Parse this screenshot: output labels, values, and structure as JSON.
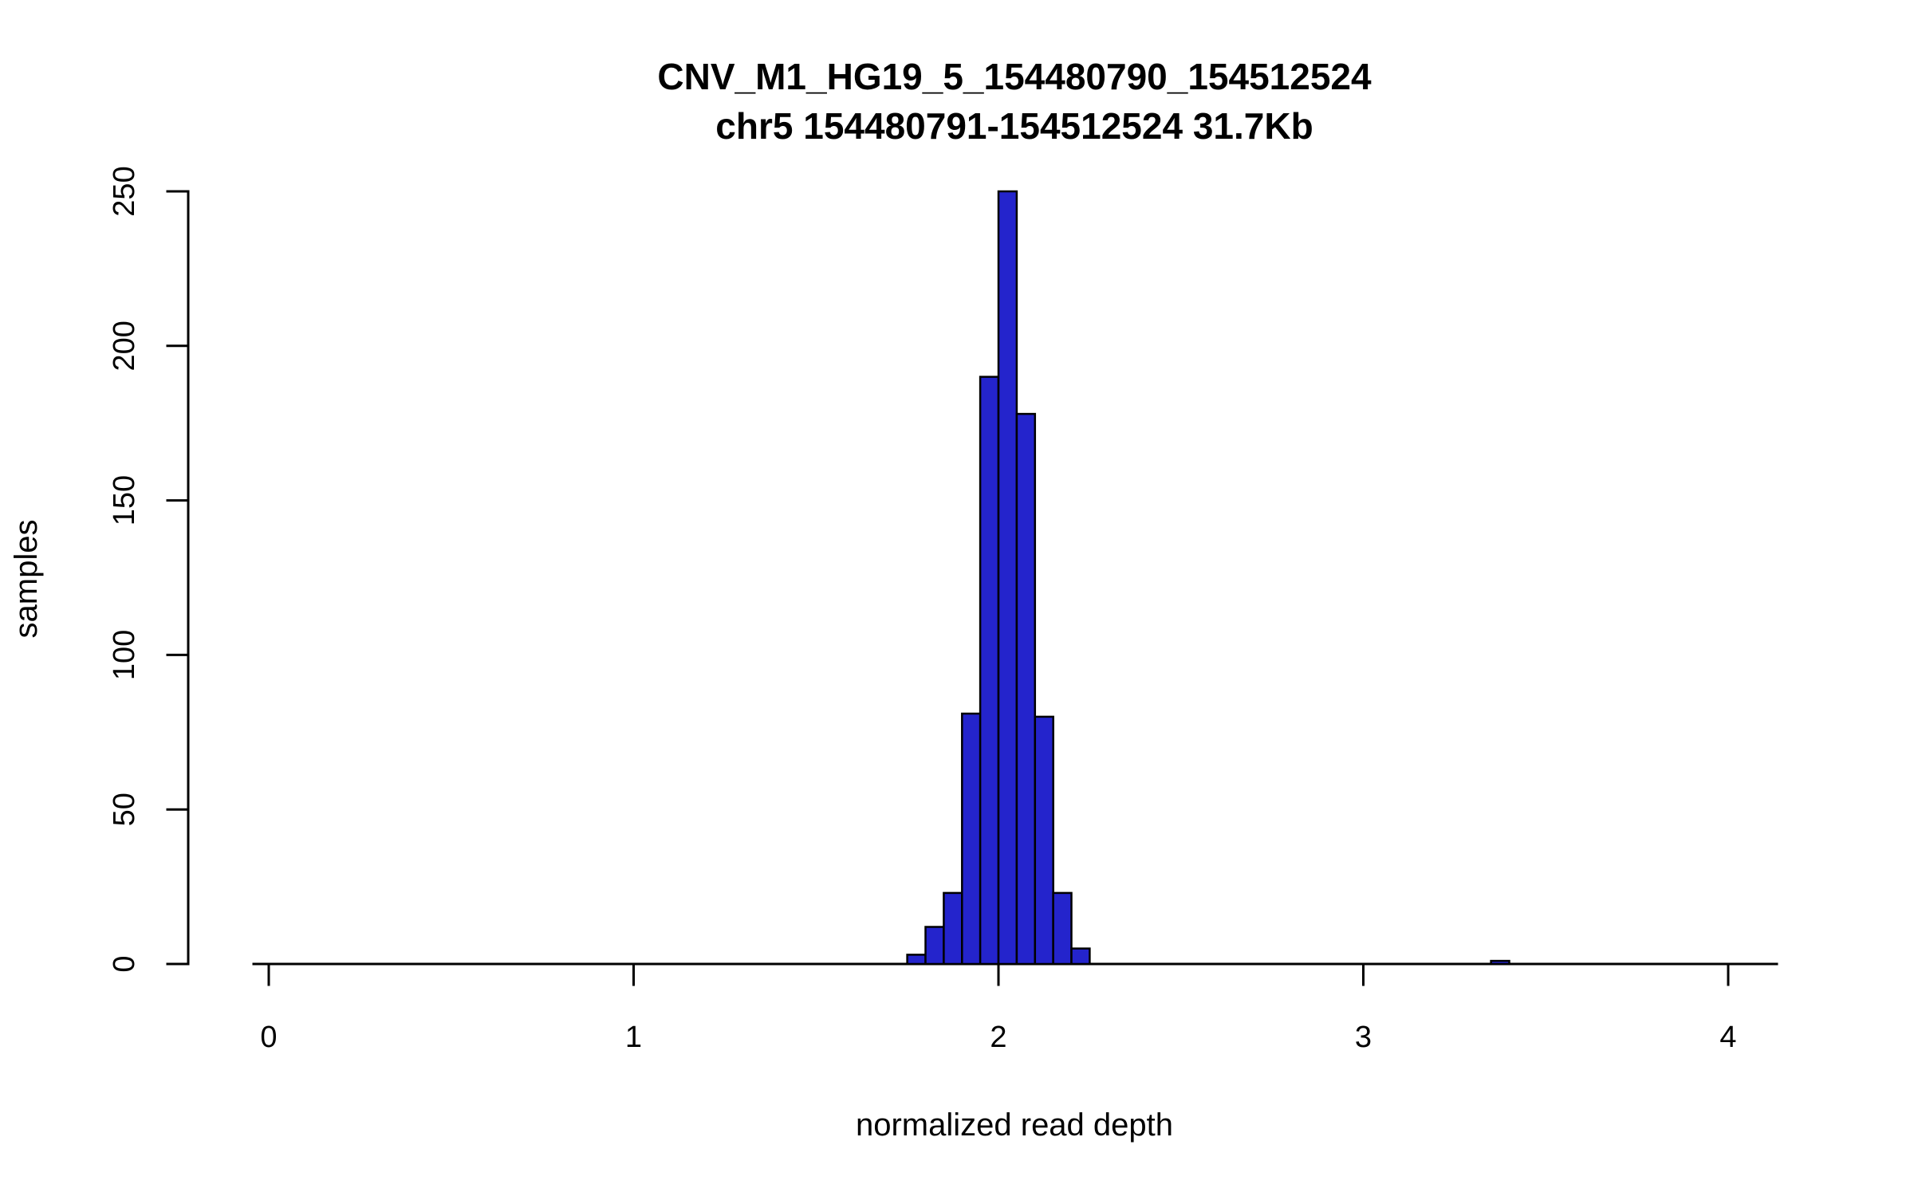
{
  "chart_data": {
    "type": "bar",
    "subtype": "histogram",
    "title": "CNV_M1_HG19_5_154480790_154512524",
    "subtitle": "chr5 154480791-154512524 31.7Kb",
    "xlabel": "normalized read depth",
    "ylabel": "samples",
    "xlim": [
      0,
      4.15
    ],
    "ylim": [
      0,
      250
    ],
    "x_ticks": [
      0,
      1,
      2,
      3,
      4
    ],
    "y_ticks": [
      0,
      50,
      100,
      150,
      200,
      250
    ],
    "grid": false,
    "legend": "none",
    "bin_width": 0.05,
    "bar_color": "#2424CC",
    "bar_border": "#000000",
    "bins": [
      {
        "x": 1.75,
        "count": 3
      },
      {
        "x": 1.8,
        "count": 12
      },
      {
        "x": 1.85,
        "count": 23
      },
      {
        "x": 1.9,
        "count": 81
      },
      {
        "x": 1.95,
        "count": 190
      },
      {
        "x": 2.0,
        "count": 250
      },
      {
        "x": 2.05,
        "count": 178
      },
      {
        "x": 2.1,
        "count": 80
      },
      {
        "x": 2.15,
        "count": 23
      },
      {
        "x": 2.2,
        "count": 5
      },
      {
        "x": 3.35,
        "count": 1
      }
    ]
  }
}
